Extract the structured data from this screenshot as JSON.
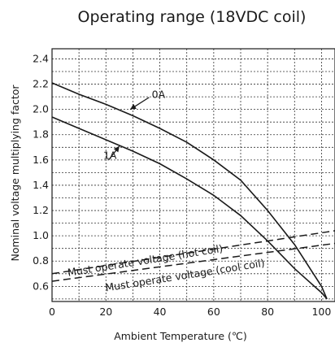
{
  "chart_data": {
    "type": "line",
    "title": "Operating range (18VDC coil)",
    "xlabel": "Ambient Temperature (℃)",
    "ylabel": "Nominal voltage multiplying factor",
    "xlim": [
      0,
      105
    ],
    "ylim": [
      0.48,
      2.48
    ],
    "x_ticks": [
      "0",
      "20",
      "40",
      "60",
      "80",
      "100"
    ],
    "y_ticks": [
      "0.6",
      "0.8",
      "1.0",
      "1.2",
      "1.4",
      "1.6",
      "1.8",
      "2.0",
      "2.2",
      "2.4"
    ],
    "grid": true,
    "series": [
      {
        "name": "0A",
        "style": "solid",
        "x": [
          0,
          10,
          20,
          30,
          40,
          50,
          60,
          70,
          80,
          90,
          100,
          102
        ],
        "y": [
          2.21,
          2.12,
          2.04,
          1.95,
          1.85,
          1.74,
          1.6,
          1.44,
          1.2,
          0.93,
          0.6,
          0.5
        ]
      },
      {
        "name": "1A",
        "style": "solid",
        "x": [
          0,
          10,
          20,
          30,
          40,
          50,
          60,
          70,
          80,
          90,
          100,
          102
        ],
        "y": [
          1.94,
          1.85,
          1.76,
          1.67,
          1.57,
          1.45,
          1.32,
          1.16,
          0.96,
          0.74,
          0.55,
          0.5
        ]
      },
      {
        "name": "Must operate voltage (hot coil)",
        "style": "dashed",
        "x": [
          0,
          105
        ],
        "y": [
          0.7,
          1.04
        ]
      },
      {
        "name": "Must operate voltage (cool coil)",
        "style": "dashed",
        "x": [
          0,
          105
        ],
        "y": [
          0.64,
          0.94
        ]
      }
    ],
    "annotations": [
      {
        "text": "0A",
        "x": 37,
        "y": 2.09
      },
      {
        "text": "1A",
        "x": 19,
        "y": 1.61
      },
      {
        "text": "Must operate voltage (hot coil)",
        "x": 6,
        "y": 0.68,
        "angle": -9
      },
      {
        "text": "Must operate voltage (cool coil)",
        "x": 20,
        "y": 0.56,
        "angle": -9
      }
    ]
  }
}
